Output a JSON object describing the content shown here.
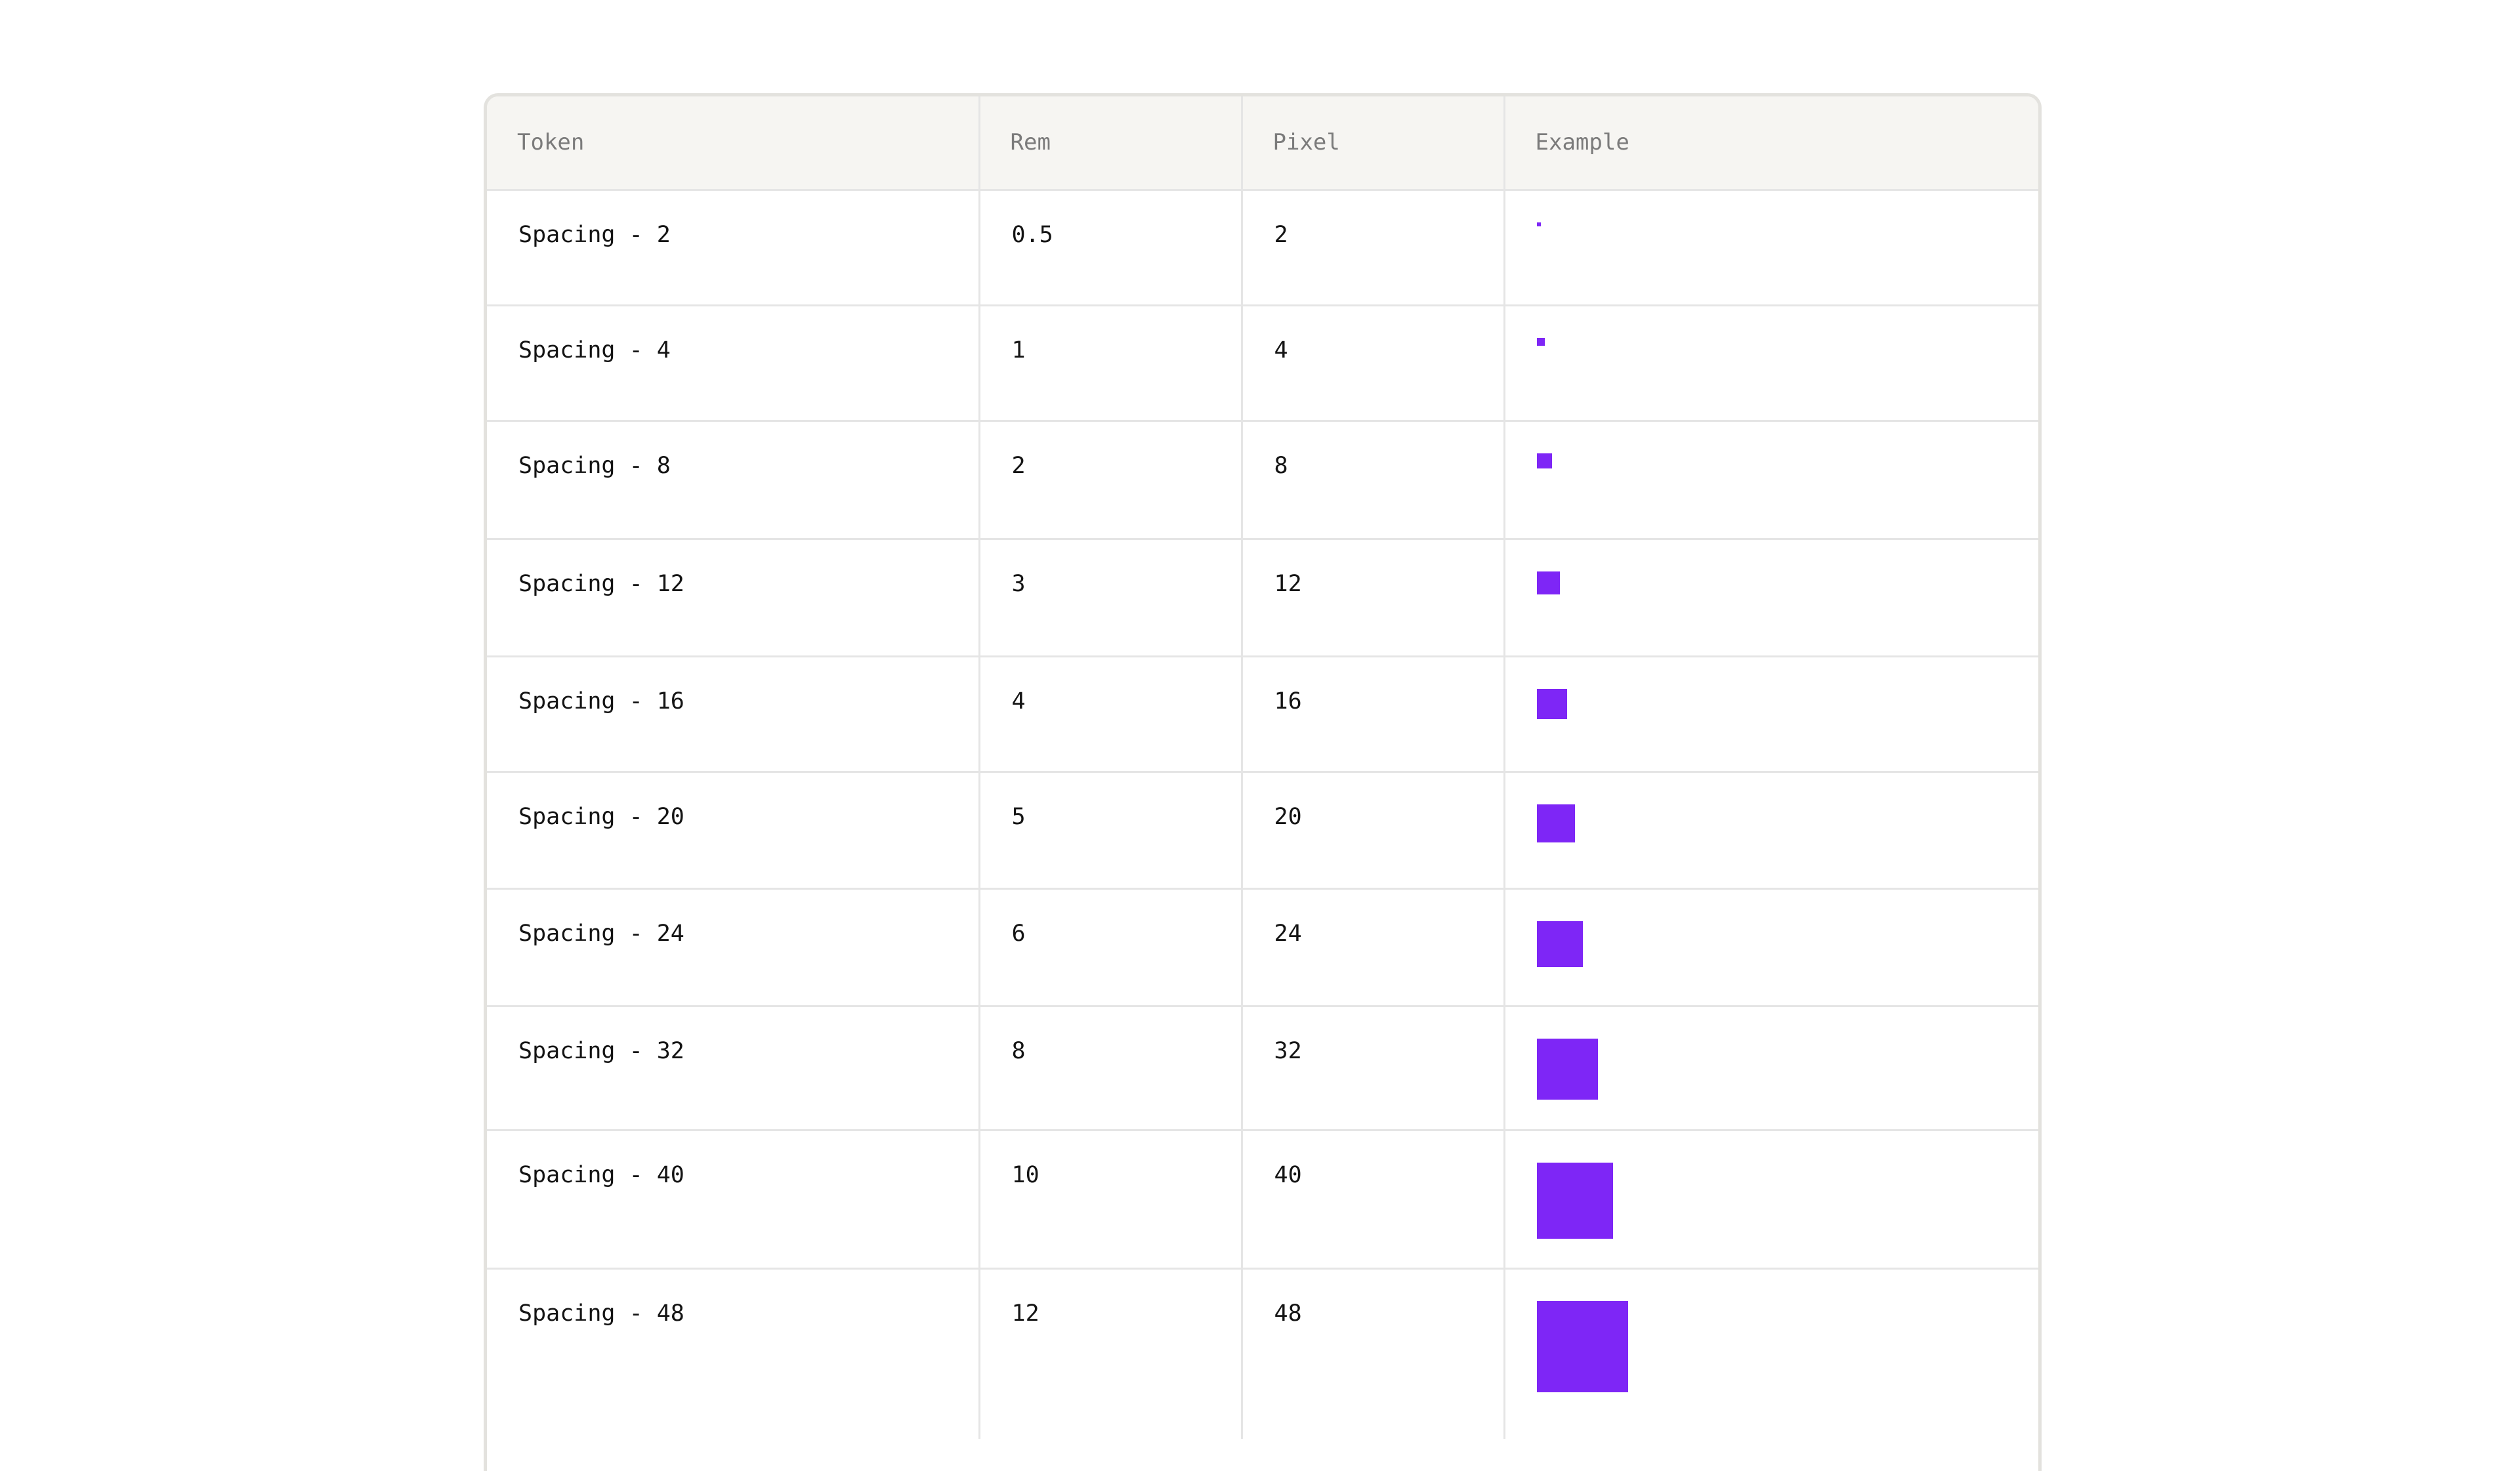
{
  "table": {
    "headers": [
      "Token",
      "Rem",
      "Pixel",
      "Example"
    ],
    "rows": [
      {
        "token": "Spacing - 2",
        "rem": "0.5",
        "pixel": "2",
        "size": 2
      },
      {
        "token": "Spacing - 4",
        "rem": "1",
        "pixel": "4",
        "size": 4
      },
      {
        "token": "Spacing - 8",
        "rem": "2",
        "pixel": "8",
        "size": 8
      },
      {
        "token": "Spacing - 12",
        "rem": "3",
        "pixel": "12",
        "size": 12
      },
      {
        "token": "Spacing - 16",
        "rem": "4",
        "pixel": "16",
        "size": 16
      },
      {
        "token": "Spacing - 20",
        "rem": "5",
        "pixel": "20",
        "size": 20
      },
      {
        "token": "Spacing - 24",
        "rem": "6",
        "pixel": "24",
        "size": 24
      },
      {
        "token": "Spacing - 32",
        "rem": "8",
        "pixel": "32",
        "size": 32
      },
      {
        "token": "Spacing - 40",
        "rem": "10",
        "pixel": "40",
        "size": 40
      },
      {
        "token": "Spacing - 48",
        "rem": "12",
        "pixel": "48",
        "size": 48
      }
    ]
  },
  "colors": {
    "swatch": "#7e26f6",
    "header_bg": "#f6f5f2",
    "border": "#e5e5e5"
  }
}
